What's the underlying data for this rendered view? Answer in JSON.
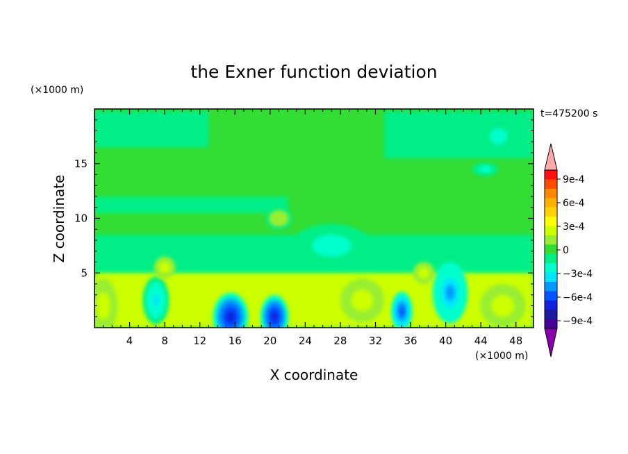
{
  "chart_data": {
    "type": "heatmap",
    "title": "the Exner function deviation",
    "xlabel": "X coordinate",
    "ylabel": "Z coordinate",
    "x_unit": "(×1000 m)",
    "y_unit": "(×1000 m)",
    "time_label": "t=475200 s",
    "xlim": [
      0,
      50
    ],
    "ylim": [
      0,
      20
    ],
    "x_ticks": [
      4,
      8,
      12,
      16,
      20,
      24,
      28,
      32,
      36,
      40,
      44,
      48
    ],
    "y_ticks": [
      5,
      10,
      15
    ],
    "colorbar": {
      "levels": [
        -0.0009,
        -0.0006,
        -0.0003,
        0,
        0.0003,
        0.0006,
        0.0009
      ],
      "labels": [
        "9e-4",
        "6e-4",
        "3e-4",
        "0",
        "−3e-4",
        "−6e-4",
        "−9e-4"
      ],
      "colors": [
        "#ffaaaa",
        "#ff1010",
        "#ff4c00",
        "#ff8800",
        "#ffb000",
        "#ffd200",
        "#ffff00",
        "#ccff00",
        "#99ee33",
        "#33dd33",
        "#00ee88",
        "#00ffcc",
        "#00e5ff",
        "#0099ff",
        "#0055ff",
        "#1122dd",
        "#1a1aa0",
        "#440099",
        "#8800aa"
      ]
    },
    "background_level_colors": {
      "upper": "#33dd33",
      "mid": "#00ee88",
      "low_positive": "#ccff00",
      "weak_negative": "#00ffcc",
      "negative": "#00e5ff",
      "strong_negative": "#0055ff",
      "positive": "#ffff00"
    },
    "features": [
      {
        "x": 15.5,
        "z": 1.0,
        "rx": 2.0,
        "rz": 2.2,
        "value": -0.0007
      },
      {
        "x": 20.5,
        "z": 1.0,
        "rx": 1.6,
        "rz": 2.0,
        "value": -0.0006
      },
      {
        "x": 35.0,
        "z": 1.5,
        "rx": 1.2,
        "rz": 1.8,
        "value": -0.0005
      },
      {
        "x": 40.5,
        "z": 3.2,
        "rx": 2.0,
        "rz": 2.8,
        "value": -0.0003
      },
      {
        "x": 7.0,
        "z": 2.5,
        "rx": 1.5,
        "rz": 2.2,
        "value": -0.0002
      },
      {
        "x": 30.5,
        "z": 2.5,
        "rx": 2.5,
        "rz": 2.0,
        "value": 0.0002
      },
      {
        "x": 1.0,
        "z": 2.0,
        "rx": 1.6,
        "rz": 2.5,
        "value": 0.0002
      },
      {
        "x": 46.5,
        "z": 2.0,
        "rx": 2.6,
        "rz": 2.0,
        "value": 0.0002
      },
      {
        "x": 37.5,
        "z": 5.0,
        "rx": 1.2,
        "rz": 1.0,
        "value": 0.0002
      },
      {
        "x": 8.0,
        "z": 5.5,
        "rx": 1.2,
        "rz": 1.0,
        "value": 0.0002
      },
      {
        "x": 21.0,
        "z": 10.0,
        "rx": 1.5,
        "rz": 1.0,
        "value": 0.0001
      },
      {
        "x": 46.0,
        "z": 17.5,
        "rx": 2.0,
        "rz": 1.5,
        "value": -0.0001
      },
      {
        "x": 44.5,
        "z": 14.5,
        "rx": 1.5,
        "rz": 0.6,
        "value": -0.0001
      },
      {
        "x": 27.0,
        "z": 7.5,
        "rx": 4.5,
        "rz": 2.0,
        "value": -0.0001
      }
    ]
  }
}
